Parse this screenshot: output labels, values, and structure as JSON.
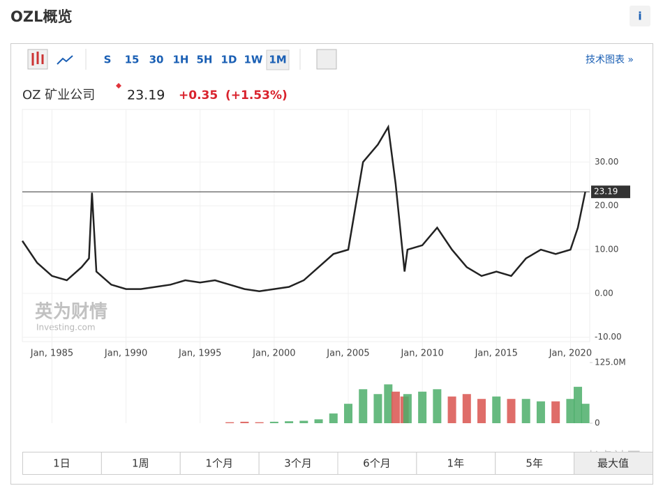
{
  "header": {
    "title": "OZL概览",
    "info": "i"
  },
  "toolbar": {
    "intervals": [
      "S",
      "15",
      "30",
      "1H",
      "5H",
      "1D",
      "1W",
      "1M"
    ],
    "selected": 7,
    "tech": "技术图表 »"
  },
  "quote": {
    "name": "OZ 矿业公司",
    "price": 23.19,
    "change": "+0.35",
    "change_pct": "(+1.53%)"
  },
  "watermark": [
    "英为财情",
    "Investing.com",
    "老虎社区"
  ],
  "chart_data": [
    {
      "type": "line",
      "x": [
        1983,
        1984,
        1985,
        1986,
        1987,
        1987.5,
        1987.7,
        1988,
        1989,
        1990,
        1991,
        1992,
        1993,
        1994,
        1995,
        1996,
        1997,
        1998,
        1999,
        2000,
        2001,
        2002,
        2003,
        2004,
        2005,
        2006,
        2007,
        2007.7,
        2008.2,
        2008.8,
        2009,
        2010,
        2011,
        2012,
        2013,
        2014,
        2015,
        2016,
        2017,
        2018,
        2019,
        2020,
        2020.5,
        2021
      ],
      "series": [
        {
          "color": "#222222",
          "values": [
            12,
            7,
            4,
            3,
            6,
            8,
            23,
            5,
            2,
            1,
            1,
            1.5,
            2,
            3,
            2.5,
            3,
            2,
            1,
            0.5,
            1,
            1.5,
            3,
            6,
            9,
            10,
            30,
            34,
            38,
            25,
            5,
            10,
            11,
            15,
            10,
            6,
            4,
            5,
            4,
            8,
            10,
            9,
            10,
            15,
            23.19
          ]
        }
      ],
      "xlim": [
        1983,
        2021.3
      ],
      "xticks": [
        {
          "value": 1985,
          "label": "Jan, 1985"
        },
        {
          "value": 1990,
          "label": "Jan, 1990"
        },
        {
          "value": 1995,
          "label": "Jan, 1995"
        },
        {
          "value": 2000,
          "label": "Jan, 2000"
        },
        {
          "value": 2005,
          "label": "Jan, 2005"
        },
        {
          "value": 2010,
          "label": "Jan, 2010"
        },
        {
          "value": 2015,
          "label": "Jan, 2015"
        },
        {
          "value": 2020,
          "label": "Jan, 2020"
        }
      ],
      "ylim": [
        -11,
        42
      ],
      "yticks": [
        {
          "value": 30,
          "label": "30.00"
        },
        {
          "value": 20,
          "label": "20.00"
        },
        {
          "value": 10,
          "label": "10.00"
        },
        {
          "value": 0,
          "label": "0.00"
        },
        {
          "value": -10,
          "label": "-10.00"
        }
      ],
      "grid": true
    },
    {
      "type": "bar",
      "x": [
        1983,
        1984,
        1985,
        1986,
        1987,
        1987.5,
        1987.7,
        1988,
        1989,
        1990,
        1991,
        1992,
        1993,
        1994,
        1995,
        1996,
        1997,
        1998,
        1999,
        2000,
        2001,
        2002,
        2003,
        2004,
        2005,
        2006,
        2007,
        2007.7,
        2008.2,
        2008.8,
        2009,
        2010,
        2011,
        2012,
        2013,
        2014,
        2015,
        2016,
        2017,
        2018,
        2019,
        2020,
        2020.5,
        2021
      ],
      "values": [
        0,
        0,
        0,
        0,
        0,
        0,
        0,
        0,
        0,
        0,
        0,
        0,
        0,
        0,
        0,
        0,
        2000000,
        3000000,
        2000000,
        3000000,
        4000000,
        5000000,
        8000000,
        20000000,
        40000000,
        70000000,
        60000000,
        80000000,
        65000000,
        55000000,
        60000000,
        65000000,
        70000000,
        55000000,
        60000000,
        50000000,
        55000000,
        50000000,
        50000000,
        45000000,
        45000000,
        50000000,
        75000000,
        40000000
      ],
      "colors": [
        "#4cae6a",
        "#d9534f"
      ],
      "ylim": [
        0,
        125000000
      ],
      "yticks": [
        {
          "value": 125000000,
          "label": "125.0M"
        },
        0
      ]
    }
  ],
  "ranges": {
    "buttons": [
      "1日",
      "1周",
      "1个月",
      "3个月",
      "6个月",
      "1年",
      "5年",
      "最大值"
    ],
    "selected": 7
  }
}
